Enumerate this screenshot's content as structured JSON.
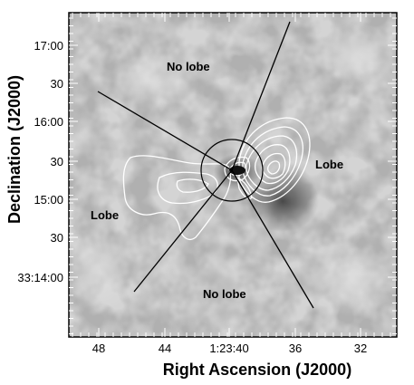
{
  "figure": {
    "x_axis_title": "Right Ascension (J2000)",
    "y_axis_title": "Declination (J2000)",
    "x_ticks": [
      "48",
      "44",
      "1:23:40",
      "36",
      "32"
    ],
    "y_ticks": [
      "17:00",
      "30",
      "16:00",
      "30",
      "15:00",
      "30",
      "33:14:00"
    ],
    "annotations": {
      "top": "No lobe",
      "bottom": "No lobe",
      "left": "Lobe",
      "right": "Lobe"
    },
    "colors": {
      "frame": "#000000",
      "contours": "#ffffff",
      "background_mid": "#a8a8a8",
      "ticks": "#ffffff"
    }
  }
}
